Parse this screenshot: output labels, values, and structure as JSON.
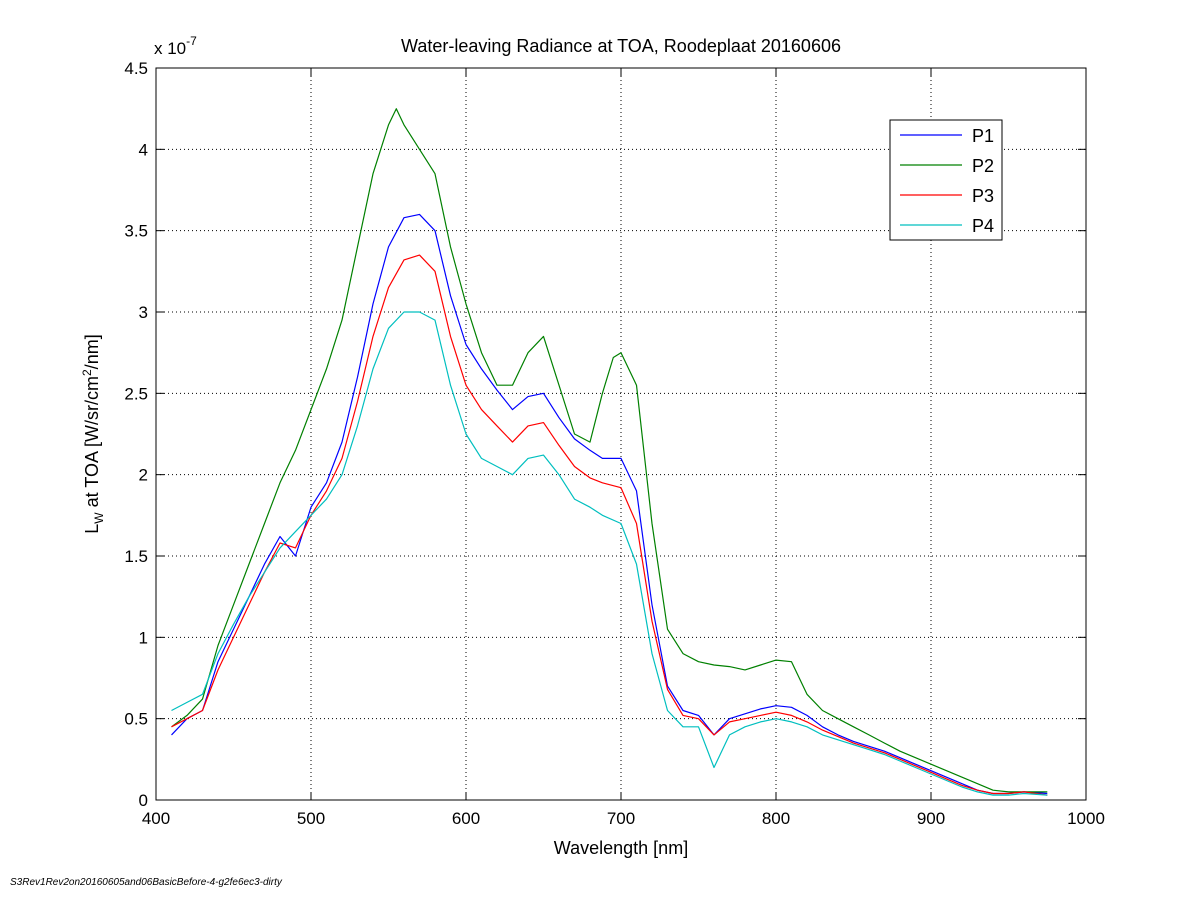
{
  "footer": {
    "note": "S3Rev1Rev2on20160605and06BasicBefore-4-g2fe6ec3-dirty"
  },
  "chart_data": {
    "type": "line",
    "title": "Water-leaving Radiance at TOA, Roodeplaat 20160606",
    "xlabel": "Wavelength [nm]",
    "ylabel_main": "L",
    "ylabel_sub": "W",
    "ylabel_rest": " at TOA [W/sr/cm",
    "ylabel_sup": "2",
    "ylabel_end": "/nm]",
    "y_multiplier_base": "x 10",
    "y_multiplier_exp": "-7",
    "xlim": [
      400,
      1000
    ],
    "ylim": [
      0,
      4.5
    ],
    "xticks": [
      400,
      500,
      600,
      700,
      800,
      900,
      1000
    ],
    "xtick_labels": [
      "400",
      "500",
      "600",
      "700",
      "800",
      "900",
      "1000"
    ],
    "yticks": [
      0,
      0.5,
      1,
      1.5,
      2,
      2.5,
      3,
      3.5,
      4,
      4.5
    ],
    "ytick_labels": [
      "0",
      "0.5",
      "1",
      "1.5",
      "2",
      "2.5",
      "3",
      "3.5",
      "4",
      "4.5"
    ],
    "grid": true,
    "legend_position": "top-right",
    "series": [
      {
        "name": "P1",
        "color": "#0000ff",
        "x": [
          410,
          420,
          430,
          440,
          450,
          460,
          470,
          480,
          490,
          500,
          510,
          520,
          530,
          540,
          550,
          560,
          570,
          580,
          590,
          600,
          610,
          620,
          630,
          640,
          650,
          660,
          670,
          680,
          688,
          700,
          710,
          720,
          730,
          740,
          750,
          760,
          770,
          780,
          790,
          800,
          810,
          820,
          830,
          840,
          850,
          860,
          870,
          880,
          890,
          900,
          910,
          920,
          930,
          940,
          950,
          960,
          975
        ],
        "y": [
          0.4,
          0.5,
          0.55,
          0.85,
          1.05,
          1.25,
          1.45,
          1.62,
          1.5,
          1.8,
          1.95,
          2.2,
          2.6,
          3.05,
          3.4,
          3.58,
          3.6,
          3.5,
          3.1,
          2.8,
          2.65,
          2.52,
          2.4,
          2.48,
          2.5,
          2.35,
          2.22,
          2.15,
          2.1,
          2.1,
          1.9,
          1.2,
          0.7,
          0.55,
          0.52,
          0.4,
          0.5,
          0.53,
          0.56,
          0.58,
          0.57,
          0.52,
          0.45,
          0.4,
          0.36,
          0.33,
          0.3,
          0.26,
          0.22,
          0.18,
          0.14,
          0.1,
          0.06,
          0.04,
          0.04,
          0.05,
          0.04
        ]
      },
      {
        "name": "P2",
        "color": "#008000",
        "x": [
          410,
          420,
          430,
          440,
          450,
          460,
          470,
          480,
          490,
          500,
          510,
          520,
          530,
          540,
          550,
          555,
          560,
          570,
          580,
          590,
          600,
          610,
          620,
          630,
          640,
          650,
          660,
          670,
          680,
          688,
          695,
          700,
          710,
          720,
          730,
          740,
          750,
          760,
          770,
          780,
          790,
          800,
          810,
          820,
          830,
          840,
          850,
          860,
          870,
          880,
          890,
          900,
          910,
          920,
          930,
          940,
          950,
          960,
          975
        ],
        "y": [
          0.45,
          0.52,
          0.62,
          0.95,
          1.2,
          1.45,
          1.7,
          1.95,
          2.15,
          2.4,
          2.65,
          2.95,
          3.4,
          3.85,
          4.15,
          4.25,
          4.15,
          4.0,
          3.85,
          3.4,
          3.05,
          2.75,
          2.55,
          2.55,
          2.75,
          2.85,
          2.55,
          2.25,
          2.2,
          2.5,
          2.72,
          2.75,
          2.55,
          1.7,
          1.05,
          0.9,
          0.85,
          0.83,
          0.82,
          0.8,
          0.83,
          0.86,
          0.85,
          0.65,
          0.55,
          0.5,
          0.45,
          0.4,
          0.35,
          0.3,
          0.26,
          0.22,
          0.18,
          0.14,
          0.1,
          0.06,
          0.05,
          0.05,
          0.05
        ]
      },
      {
        "name": "P3",
        "color": "#ff0000",
        "x": [
          410,
          420,
          430,
          440,
          450,
          460,
          470,
          480,
          490,
          500,
          510,
          520,
          530,
          540,
          550,
          560,
          570,
          580,
          590,
          600,
          610,
          620,
          630,
          640,
          650,
          660,
          670,
          680,
          688,
          700,
          710,
          720,
          730,
          740,
          750,
          760,
          770,
          780,
          790,
          800,
          810,
          820,
          830,
          840,
          850,
          860,
          870,
          880,
          890,
          900,
          910,
          920,
          930,
          940,
          950,
          960,
          975
        ],
        "y": [
          0.45,
          0.5,
          0.55,
          0.8,
          1.0,
          1.2,
          1.4,
          1.58,
          1.55,
          1.75,
          1.9,
          2.1,
          2.45,
          2.85,
          3.15,
          3.32,
          3.35,
          3.25,
          2.85,
          2.55,
          2.4,
          2.3,
          2.2,
          2.3,
          2.32,
          2.18,
          2.05,
          1.98,
          1.95,
          1.92,
          1.7,
          1.1,
          0.68,
          0.52,
          0.5,
          0.4,
          0.48,
          0.5,
          0.52,
          0.54,
          0.52,
          0.48,
          0.43,
          0.39,
          0.35,
          0.32,
          0.29,
          0.25,
          0.21,
          0.17,
          0.13,
          0.09,
          0.06,
          0.04,
          0.04,
          0.05,
          0.03
        ]
      },
      {
        "name": "P4",
        "color": "#00bfbf",
        "x": [
          410,
          420,
          430,
          440,
          450,
          460,
          470,
          480,
          490,
          500,
          510,
          520,
          530,
          540,
          550,
          560,
          570,
          580,
          590,
          600,
          610,
          620,
          630,
          640,
          650,
          660,
          670,
          680,
          688,
          700,
          710,
          720,
          730,
          740,
          750,
          760,
          770,
          780,
          790,
          800,
          810,
          820,
          830,
          840,
          850,
          860,
          870,
          880,
          890,
          900,
          910,
          920,
          930,
          940,
          950,
          960,
          975
        ],
        "y": [
          0.55,
          0.6,
          0.65,
          0.9,
          1.08,
          1.25,
          1.4,
          1.55,
          1.65,
          1.75,
          1.85,
          2.0,
          2.3,
          2.65,
          2.9,
          3.0,
          3.0,
          2.95,
          2.55,
          2.25,
          2.1,
          2.05,
          2.0,
          2.1,
          2.12,
          2.0,
          1.85,
          1.8,
          1.75,
          1.7,
          1.45,
          0.9,
          0.55,
          0.45,
          0.45,
          0.2,
          0.4,
          0.45,
          0.48,
          0.5,
          0.48,
          0.45,
          0.4,
          0.37,
          0.34,
          0.31,
          0.28,
          0.24,
          0.2,
          0.16,
          0.12,
          0.08,
          0.05,
          0.03,
          0.03,
          0.04,
          0.03
        ]
      }
    ]
  }
}
